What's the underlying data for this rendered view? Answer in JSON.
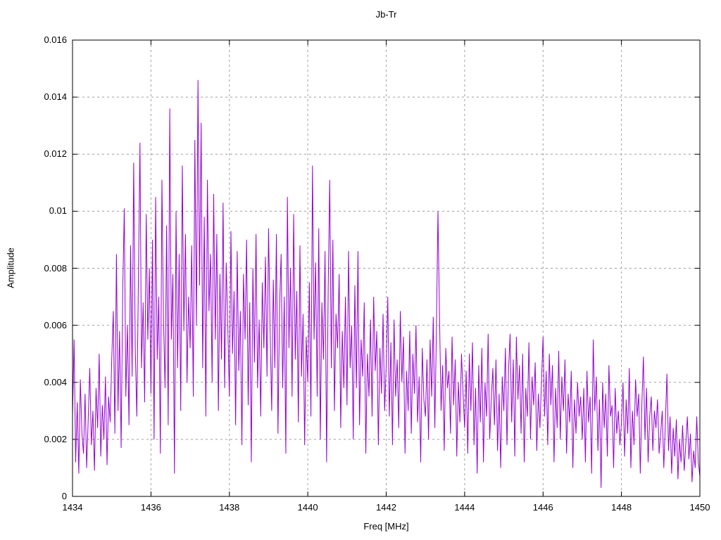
{
  "chart_data": {
    "type": "line",
    "title": "Jb-Tr",
    "xlabel": "Freq [MHz]",
    "ylabel": "Amplitude",
    "xlim": [
      1434,
      1450
    ],
    "ylim": [
      0,
      0.016
    ],
    "x_ticks": [
      1434,
      1436,
      1438,
      1440,
      1442,
      1444,
      1446,
      1448,
      1450
    ],
    "y_ticks": [
      0,
      0.002,
      0.004,
      0.006,
      0.008,
      0.01,
      0.012,
      0.014,
      0.016
    ],
    "grid": "dashed",
    "legend": "none",
    "line_color": "#9400d3",
    "grid_color": "#9e9e9e",
    "border_color": "#000000",
    "x_start": 1434,
    "x_step": 0.04,
    "y_scale": 0.0001,
    "values": [
      28,
      55,
      12,
      33,
      8,
      41,
      22,
      15,
      36,
      10,
      27,
      45,
      18,
      30,
      9,
      38,
      24,
      50,
      14,
      32,
      20,
      42,
      11,
      35,
      26,
      48,
      65,
      22,
      85,
      30,
      58,
      17,
      72,
      101,
      35,
      60,
      25,
      88,
      42,
      117,
      52,
      28,
      76,
      124,
      45,
      68,
      33,
      99,
      55,
      80,
      36,
      90,
      20,
      105,
      48,
      70,
      15,
      111,
      62,
      38,
      95,
      25,
      136,
      55,
      78,
      8,
      100,
      45,
      85,
      30,
      116,
      58,
      92,
      40,
      70,
      52,
      88,
      35,
      125,
      60,
      146,
      74,
      131,
      45,
      98,
      28,
      111,
      65,
      85,
      40,
      106,
      55,
      92,
      30,
      78,
      48,
      103,
      38,
      82,
      60,
      35,
      93,
      50,
      72,
      25,
      86,
      44,
      65,
      18,
      78,
      55,
      90,
      32,
      68,
      12,
      80,
      47,
      92,
      38,
      62,
      28,
      75,
      52,
      84,
      42,
      94,
      58,
      30,
      76,
      45,
      92,
      22,
      66,
      85,
      38,
      70,
      15,
      105,
      52,
      80,
      35,
      99,
      48,
      72,
      26,
      88,
      42,
      64,
      18,
      56,
      40,
      75,
      28,
      116,
      55,
      82,
      35,
      94,
      20,
      68,
      48,
      86,
      12,
      72,
      111,
      45,
      90,
      30,
      64,
      52,
      78,
      24,
      58,
      38,
      70,
      32,
      86,
      45,
      60,
      20,
      74,
      38,
      86,
      25,
      55,
      42,
      68,
      15,
      50,
      35,
      62,
      28,
      70,
      44,
      58,
      18,
      52,
      36,
      64,
      30,
      46,
      70,
      28,
      54,
      18,
      62,
      35,
      48,
      24,
      65,
      40,
      56,
      15,
      44,
      30,
      58,
      22,
      50,
      36,
      60,
      26,
      42,
      12,
      52,
      34,
      28,
      48,
      20,
      55,
      35,
      63,
      24,
      58,
      100,
      63,
      30,
      46,
      16,
      52,
      38,
      44,
      22,
      56,
      32,
      48,
      14,
      40,
      26,
      50,
      36,
      24,
      44,
      15,
      50,
      30,
      54,
      18,
      38,
      8,
      46,
      26,
      52,
      12,
      40,
      28,
      57,
      20,
      34,
      45,
      25,
      48,
      16,
      36,
      10,
      42,
      30,
      52,
      18,
      44,
      57,
      26,
      48,
      14,
      56,
      34,
      46,
      22,
      50,
      12,
      38,
      28,
      54,
      20,
      42,
      32,
      47,
      16,
      36,
      24,
      40,
      56,
      28,
      44,
      18,
      50,
      32,
      46,
      12,
      38,
      24,
      51,
      20,
      42,
      30,
      48,
      15,
      36,
      26,
      44,
      10,
      34,
      22,
      40,
      28,
      35,
      20,
      38,
      12,
      44,
      26,
      35,
      8,
      55,
      30,
      42,
      16,
      34,
      3,
      40,
      24,
      36,
      14,
      46,
      28,
      32,
      10,
      38,
      22,
      30,
      18,
      26,
      40,
      14,
      34,
      22,
      45,
      10,
      30,
      18,
      41,
      28,
      36,
      8,
      32,
      49,
      20,
      38,
      12,
      28,
      35,
      16,
      30,
      24,
      34,
      15,
      22,
      30,
      10,
      26,
      43,
      16,
      28,
      8,
      24,
      14,
      27,
      6,
      20,
      12,
      25,
      9,
      18,
      28,
      13,
      22,
      5,
      16,
      10,
      28,
      12,
      7
    ]
  }
}
